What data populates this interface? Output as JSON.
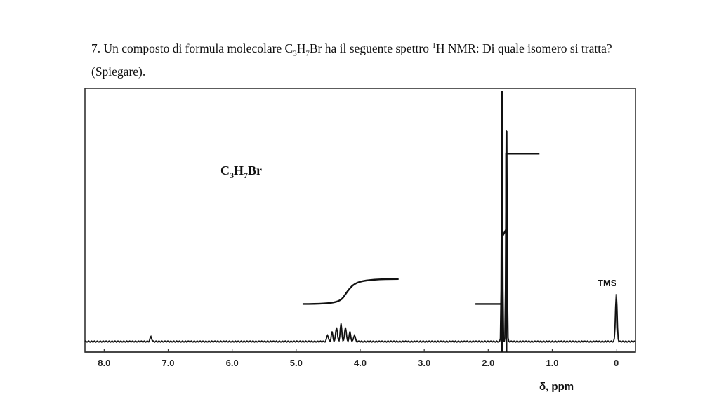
{
  "question": {
    "number": "7.",
    "text_before": " Un composto di formula molecolare C",
    "sub3": "3",
    "h": "H",
    "sub7": "7",
    "text_mid": "Br ha il seguente spettro ",
    "sup1": "1",
    "text_after": "H NMR: Di quale isomero si tratta? (Spiegare)."
  },
  "chart_data": {
    "type": "line",
    "title": "",
    "xlabel": "δ, ppm",
    "ylabel": "",
    "xlim": [
      8.3,
      -0.3
    ],
    "x_reversed": true,
    "x_ticks": [
      8.0,
      7.0,
      6.0,
      5.0,
      4.0,
      3.0,
      2.0,
      1.0,
      0
    ],
    "x_tick_labels": [
      "8.0",
      "7.0",
      "6.0",
      "5.0",
      "4.0",
      "3.0",
      "2.0",
      "1.0",
      "0"
    ],
    "compound_label": {
      "main": "C",
      "sub1": "3",
      "mid": "H",
      "sub2": "7",
      "end": "Br"
    },
    "annotations": [
      {
        "text": "TMS",
        "x": 0
      }
    ],
    "grid": false,
    "series": [
      {
        "kind": "spectrum",
        "peaks": [
          {
            "center": 4.3,
            "description": "septet",
            "lines": 7,
            "spacing_ppm": 0.07,
            "rel_height": 0.07
          },
          {
            "center": 1.75,
            "description": "doublet",
            "lines": 2,
            "spacing_ppm": 0.07,
            "rel_height": 1.0
          },
          {
            "center": 0.0,
            "description": "TMS",
            "lines": 1,
            "rel_height": 0.19
          },
          {
            "center": 7.27,
            "description": "small impurity",
            "lines": 1,
            "rel_height": 0.02
          }
        ]
      },
      {
        "kind": "integral",
        "segments": [
          {
            "x": [
              4.9,
              4.2,
              3.4
            ],
            "y_start": 0.15,
            "y_end": 0.25,
            "rise": 0.1
          },
          {
            "x": [
              2.2,
              1.78,
              1.72,
              1.2
            ],
            "y_start": 0.15,
            "y_end": 0.75,
            "rise": 0.6
          }
        ]
      }
    ]
  }
}
